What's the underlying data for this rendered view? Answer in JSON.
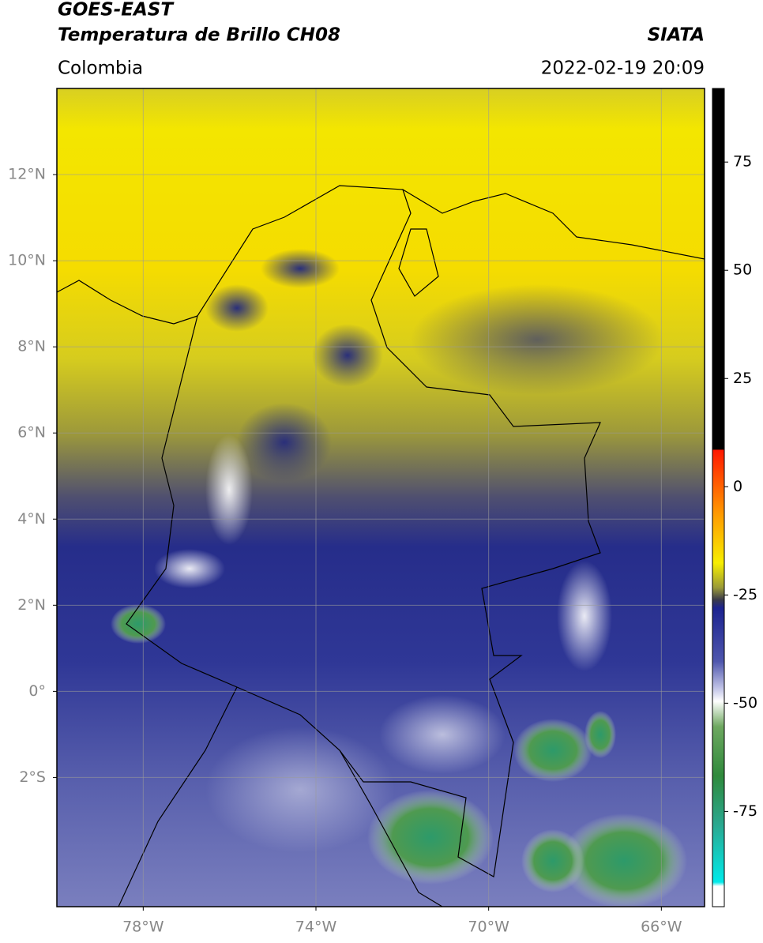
{
  "header": {
    "title": "GOES-EAST",
    "subtitle": "Temperatura de Brillo CH08",
    "agency": "SIATA",
    "region": "Colombia",
    "datetime": "2022-02-19 20:09"
  },
  "map": {
    "lon_range": [
      -80,
      -65
    ],
    "lat_range": [
      -5,
      14
    ],
    "lat_ticks": [
      {
        "value": 12,
        "label": "12°N"
      },
      {
        "value": 10,
        "label": "10°N"
      },
      {
        "value": 8,
        "label": "8°N"
      },
      {
        "value": 6,
        "label": "6°N"
      },
      {
        "value": 4,
        "label": "4°N"
      },
      {
        "value": 2,
        "label": "2°N"
      },
      {
        "value": 0,
        "label": "0°"
      },
      {
        "value": -2,
        "label": "2°S"
      }
    ],
    "lon_ticks": [
      {
        "value": -78,
        "label": "78°W"
      },
      {
        "value": -74,
        "label": "74°W"
      },
      {
        "value": -70,
        "label": "70°W"
      },
      {
        "value": -66,
        "label": "66°W"
      }
    ]
  },
  "colorbar": {
    "limits": [
      -97,
      92
    ],
    "ticks": [
      75,
      50,
      25,
      0,
      -25,
      -50,
      -75
    ]
  }
}
